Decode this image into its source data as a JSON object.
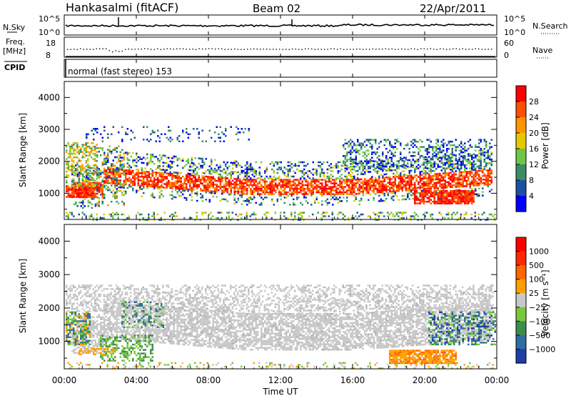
{
  "header": {
    "title": "Hankasalmi (fitACF)",
    "beam": "Beam 02",
    "date": "22/Apr/2011"
  },
  "noise_panel": {
    "left_label": "N.Sky",
    "right_label": "N.Search",
    "ticks_left": [
      "10^5",
      "10^0"
    ],
    "ticks_right": [
      "10^5",
      "10^0"
    ]
  },
  "freq_panel": {
    "left_label_1": "Freq.",
    "left_label_2": "[MHz]",
    "right_label": "Nave",
    "ticks_left": [
      "18",
      "8"
    ],
    "ticks_right": [
      "60",
      "0"
    ]
  },
  "cpid_panel": {
    "label": "CPID",
    "text": "normal (fast stereo) 153"
  },
  "chart_data": [
    {
      "type": "heatmap",
      "name": "power",
      "ylabel": "Slant Range [km]",
      "ylim": [
        180,
        4500
      ],
      "yticks": [
        "1000",
        "2000",
        "3000",
        "4000"
      ],
      "ytick_values": [
        1000,
        2000,
        3000,
        4000
      ],
      "colorbar": {
        "label": "Power [dB]",
        "tick_labels": [
          "4",
          "8",
          "12",
          "16",
          "20",
          "24",
          "28"
        ],
        "colors": [
          "#0000ff",
          "#1e50a0",
          "#3c8c64",
          "#6ec846",
          "#e6c800",
          "#ff9600",
          "#ff5000",
          "#ff0000"
        ]
      }
    },
    {
      "type": "heatmap",
      "name": "velocity",
      "ylabel": "Slant Range [km]",
      "ylim": [
        180,
        4500
      ],
      "yticks": [
        "1000",
        "2000",
        "3000",
        "4000"
      ],
      "ytick_values": [
        1000,
        2000,
        3000,
        4000
      ],
      "colorbar": {
        "label": "Velocity [m s⁻¹]",
        "tick_labels": [
          "1000",
          "500",
          "100",
          "25",
          "−25",
          "−100",
          "−500",
          "−1000"
        ],
        "colors": [
          "#1e3caa",
          "#2d6ea0",
          "#3c8c50",
          "#78c83c",
          "#c8c8c8",
          "#ffa000",
          "#ff6400",
          "#ff2800",
          "#ff0000"
        ]
      }
    }
  ],
  "x_axis": {
    "label": "Time UT",
    "ticks": [
      "00:00",
      "04:00",
      "08:00",
      "12:00",
      "16:00",
      "20:00",
      "00:00"
    ]
  }
}
